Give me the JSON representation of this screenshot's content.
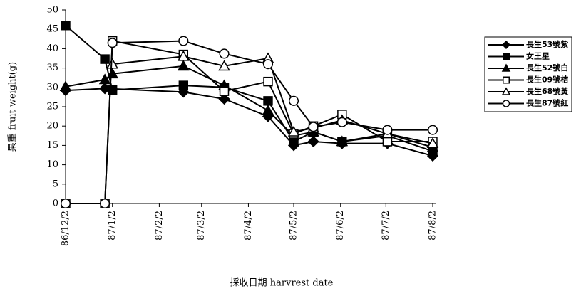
{
  "chart_data": {
    "type": "line",
    "xlabel": "採收日期 harvrest date",
    "ylabel": "果重 fruit weight(g)",
    "xlim": [
      0,
      243
    ],
    "xticks": [
      {
        "value": 0,
        "label": "86/12/2"
      },
      {
        "value": 31,
        "label": "87/1/2"
      },
      {
        "value": 62,
        "label": "87/2/2"
      },
      {
        "value": 90,
        "label": "87/3/2"
      },
      {
        "value": 121,
        "label": "87/4/2"
      },
      {
        "value": 151,
        "label": "87/5/2"
      },
      {
        "value": 182,
        "label": "87/6/2"
      },
      {
        "value": 212,
        "label": "87/7/2"
      },
      {
        "value": 243,
        "label": "87/8/2"
      }
    ],
    "ylim": [
      0,
      50
    ],
    "yticks": [
      0,
      5,
      10,
      15,
      20,
      25,
      30,
      35,
      40,
      45,
      50
    ],
    "legend": "right",
    "series": [
      {
        "name": "長生53號紫",
        "color": "#000000",
        "marker": "diamond",
        "x": [
          0,
          26,
          78,
          105,
          134,
          151,
          164,
          183,
          213,
          243
        ],
        "values": [
          29.2,
          29.7,
          28.8,
          27,
          22.5,
          15,
          16,
          15.5,
          15.5,
          12.3
        ]
      },
      {
        "name": "女王星",
        "color": "#000000",
        "marker": "square",
        "x": [
          0,
          26,
          31,
          78,
          105,
          134,
          151,
          164,
          183,
          213,
          243
        ],
        "values": [
          46,
          37.3,
          29.3,
          30.5,
          30,
          26.5,
          16,
          18.5,
          16,
          17.5,
          13.5
        ]
      },
      {
        "name": "長生52號白",
        "color": "#000000",
        "marker": "triangle",
        "x": [
          0,
          26,
          31,
          78,
          105,
          134,
          151,
          164,
          183,
          213,
          243
        ],
        "values": [
          30.2,
          32,
          33.5,
          35.5,
          30.5,
          24,
          17.5,
          18.5,
          16,
          18,
          14.5
        ]
      },
      {
        "name": "長生09號桔",
        "color": "#000000",
        "marker": "square-open",
        "x": [
          0,
          26,
          31,
          78,
          105,
          134,
          151,
          164,
          183,
          213,
          243
        ],
        "values": [
          0,
          0,
          42,
          38.5,
          29,
          31.5,
          18,
          20,
          23,
          16,
          16
        ]
      },
      {
        "name": "長生68號黃",
        "color": "#000000",
        "marker": "triangle-open",
        "x": [
          31,
          78,
          105,
          134,
          151,
          164,
          183,
          213,
          243
        ],
        "values": [
          36,
          38,
          35.5,
          37.5,
          18.5,
          19.5,
          21.5,
          18,
          15.5
        ]
      },
      {
        "name": "長生87號紅",
        "color": "#000000",
        "marker": "circle-open",
        "x": [
          0,
          26,
          31,
          78,
          105,
          134,
          151,
          164,
          183,
          213,
          243
        ],
        "values": [
          0,
          0,
          41.5,
          42,
          38.7,
          36,
          26.5,
          19.8,
          21,
          19,
          19
        ]
      }
    ]
  }
}
